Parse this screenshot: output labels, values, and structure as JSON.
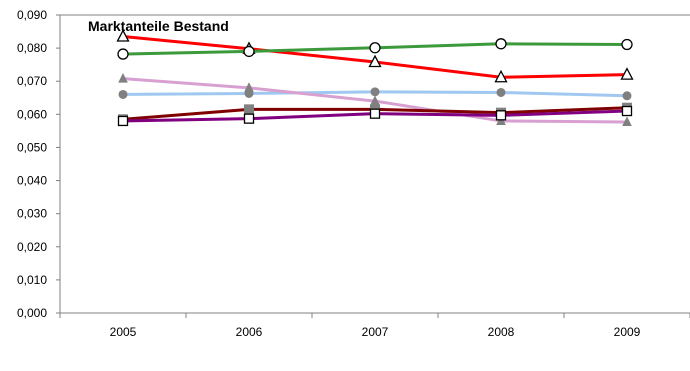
{
  "chart_data": {
    "type": "line",
    "title": "Marktanteile  Bestand",
    "xlabel": "",
    "ylabel": "",
    "categories": [
      "2005",
      "2006",
      "2007",
      "2008",
      "2009"
    ],
    "ylim": [
      0,
      0.09
    ],
    "yticks": [
      "0,000",
      "0,010",
      "0,020",
      "0,030",
      "0,040",
      "0,050",
      "0,060",
      "0,070",
      "0,080",
      "0,090"
    ],
    "grid": "y-top-line-only",
    "legend": "none",
    "series": [
      {
        "color": "#ff0000",
        "marker": "triangle-open",
        "values": [
          0.0835,
          0.0798,
          0.0758,
          0.0712,
          0.072
        ]
      },
      {
        "color": "#3c9a3c",
        "marker": "circle-open",
        "values": [
          0.0782,
          0.079,
          0.0801,
          0.0813,
          0.0811
        ]
      },
      {
        "color": "#a0c8f0",
        "marker": "circle-gray",
        "values": [
          0.066,
          0.0663,
          0.0668,
          0.0666,
          0.0656
        ]
      },
      {
        "color": "#d8a0d0",
        "marker": "triangle-gray",
        "values": [
          0.0708,
          0.068,
          0.064,
          0.058,
          0.0577
        ]
      },
      {
        "color": "#800000",
        "marker": "square-gray",
        "values": [
          0.0585,
          0.0615,
          0.0615,
          0.0605,
          0.062
        ]
      },
      {
        "color": "#800080",
        "marker": "square-open",
        "values": [
          0.058,
          0.0587,
          0.0602,
          0.0597,
          0.061
        ]
      }
    ]
  }
}
